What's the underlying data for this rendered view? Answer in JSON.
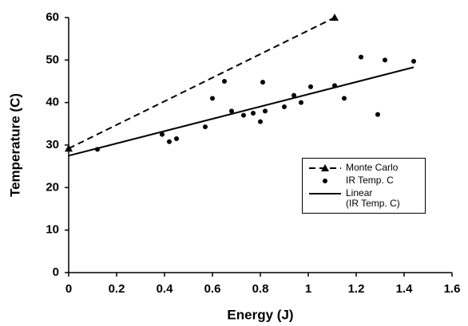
{
  "chart_data": {
    "type": "scatter",
    "xlabel": "Energy (J)",
    "ylabel": "Temperature (C)",
    "xlim": [
      0,
      1.6
    ],
    "xticks": [
      0,
      0.2,
      0.4,
      0.6,
      0.8,
      1,
      1.2,
      1.4,
      1.6
    ],
    "ylim": [
      0,
      60
    ],
    "yticks": [
      0,
      10,
      20,
      30,
      40,
      50,
      60
    ],
    "grid": false,
    "legend": "lower right",
    "series": [
      {
        "name": "Monte Carlo",
        "color": "#000000",
        "line": "dashed",
        "marker": "triangle",
        "x": [
          0,
          1.11
        ],
        "values": [
          29.2,
          60
        ]
      },
      {
        "name": "IR Temp. C",
        "color": "#000000",
        "line": "none",
        "marker": "circle",
        "x": [
          0.12,
          0.39,
          0.42,
          0.45,
          0.57,
          0.6,
          0.65,
          0.68,
          0.73,
          0.77,
          0.8,
          0.81,
          0.82,
          0.9,
          0.94,
          0.97,
          1.01,
          1.11,
          1.15,
          1.22,
          1.29,
          1.32,
          1.44
        ],
        "values": [
          29,
          32.5,
          30.8,
          31.5,
          34.3,
          41,
          45,
          38,
          37,
          37.5,
          35.5,
          44.8,
          38,
          39,
          41.7,
          40,
          43.7,
          44,
          41,
          50.7,
          37.2,
          50,
          49.7
        ]
      },
      {
        "name": "Linear\n(IR Temp. C)",
        "color": "#000000",
        "line": "solid",
        "marker": "none",
        "x": [
          0,
          1.44
        ],
        "values": [
          27.5,
          48.3
        ]
      }
    ]
  }
}
